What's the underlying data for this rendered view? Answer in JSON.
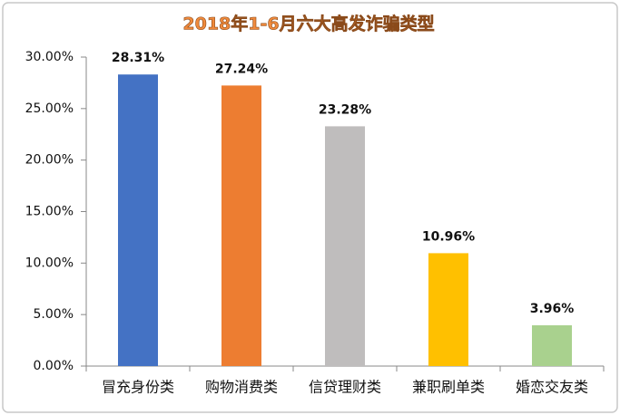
{
  "chart_data": {
    "type": "bar",
    "title": "2018年1-6月六大高发诈骗类型",
    "categories": [
      "冒充身份类",
      "购物消费类",
      "信贷理财类",
      "兼职刷单类",
      "婚恋交友类"
    ],
    "values": [
      28.31,
      27.24,
      23.28,
      10.96,
      3.96
    ],
    "value_labels": [
      "28.31%",
      "27.24%",
      "23.28%",
      "10.96%",
      "3.96%"
    ],
    "colors": [
      "#4472c4",
      "#ed7d31",
      "#bfbdbd",
      "#ffc000",
      "#a9d18e"
    ],
    "ylim": [
      0,
      30
    ],
    "yticks": [
      {
        "value": 0,
        "label": "0.00%"
      },
      {
        "value": 5,
        "label": "5.00%"
      },
      {
        "value": 10,
        "label": "10.00%"
      },
      {
        "value": 15,
        "label": "15.00%"
      },
      {
        "value": 20,
        "label": "20.00%"
      },
      {
        "value": 25,
        "label": "25.00%"
      },
      {
        "value": 30,
        "label": "30.00%"
      }
    ],
    "grid": false
  }
}
